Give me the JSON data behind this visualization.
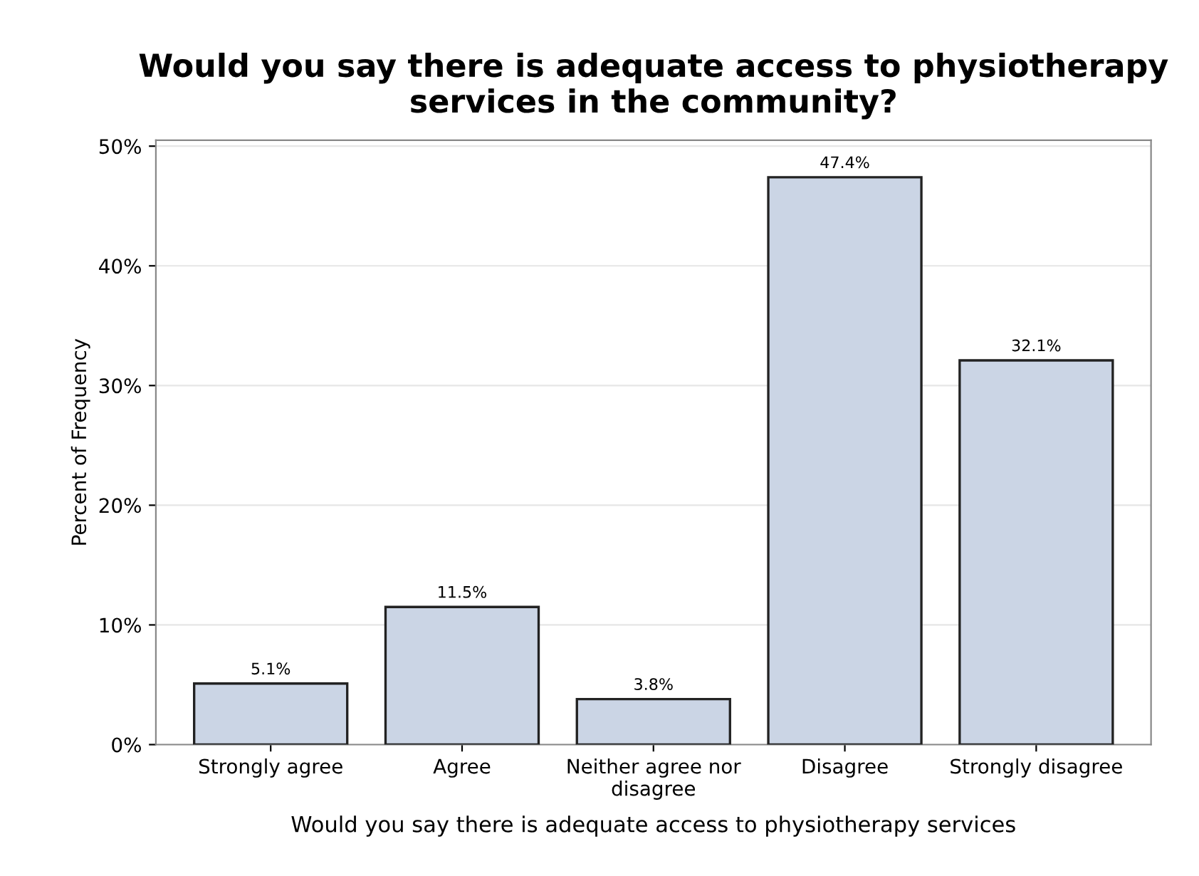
{
  "chart_data": {
    "type": "bar",
    "title": "Would you say there is adequate access to physiotherapy\nservices in the community?",
    "xlabel": "Would you say there is adequate access to physiotherapy services",
    "ylabel": "Percent of Frequency",
    "categories": [
      "Strongly agree",
      "Agree",
      "Neither agree nor\ndisagree",
      "Disagree",
      "Strongly disagree"
    ],
    "values": [
      5.1,
      11.5,
      3.8,
      47.4,
      32.1
    ],
    "value_labels": [
      "5.1%",
      "11.5%",
      "3.8%",
      "47.4%",
      "32.1%"
    ],
    "color": "#cbd5e5",
    "ylim": [
      0,
      50.5
    ],
    "yticks": [
      {
        "value": 0,
        "label": "0%"
      },
      {
        "value": 10,
        "label": "10%"
      },
      {
        "value": 20,
        "label": "20%"
      },
      {
        "value": 30,
        "label": "30%"
      },
      {
        "value": 40,
        "label": "40%"
      },
      {
        "value": 50,
        "label": "50%"
      }
    ],
    "grid": "y"
  }
}
